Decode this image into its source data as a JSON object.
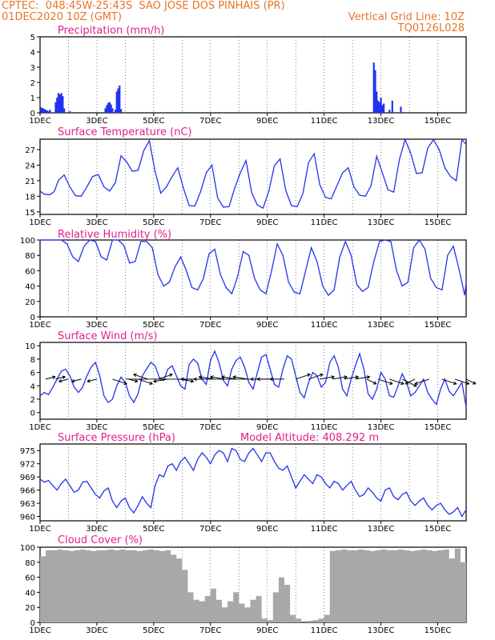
{
  "header": {
    "line1": "CPTEC:  048:45W-25:43S  SAO JOSE DOS PINHAIS (PR)",
    "line2_left": "01DEC2020 10Z (GMT)",
    "line2_right": "Vertical Grid Line: 10Z",
    "line3_right": "TQ0126L028",
    "color": "#e8742a"
  },
  "colors": {
    "title": "#e0208c",
    "series": "#2233ee",
    "cloud": "#a8a8a8",
    "frame": "#000000"
  },
  "x_tick_labels": [
    "1DEC",
    "3DEC",
    "5DEC",
    "7DEC",
    "9DEC",
    "11DEC",
    "13DEC",
    "15DEC"
  ],
  "x_range_days": [
    1,
    16
  ],
  "panels": [
    {
      "id": "precip",
      "title": "Precipitation (mm/h)",
      "ylim": [
        0,
        5
      ],
      "yticks": [
        0,
        1,
        2,
        3,
        4,
        5
      ]
    },
    {
      "id": "temp",
      "title": "Surface Temperature (nC)",
      "ylim": [
        14.5,
        29
      ],
      "yticks": [
        15,
        18,
        21,
        24,
        27
      ]
    },
    {
      "id": "rh",
      "title": "Relative Humidity (%)",
      "ylim": [
        0,
        100
      ],
      "yticks": [
        0,
        20,
        40,
        60,
        80,
        100
      ]
    },
    {
      "id": "wind",
      "title": "Surface Wind (m/s)",
      "ylim": [
        -1,
        10.5
      ],
      "yticks": [
        0,
        2,
        4,
        6,
        8,
        10
      ]
    },
    {
      "id": "pres",
      "title": "Surface Pressure (hPa)",
      "extra_label": "Model Altitude: 408.292 m",
      "ylim": [
        959,
        976.5
      ],
      "yticks": [
        960,
        963,
        966,
        969,
        972,
        975
      ]
    },
    {
      "id": "cloud",
      "title": "Cloud Cover (%)",
      "ylim": [
        0,
        100
      ],
      "yticks": [
        0,
        20,
        40,
        60,
        80,
        100
      ]
    }
  ],
  "chart_data": [
    {
      "type": "bar",
      "title": "Precipitation (mm/h)",
      "ylim": [
        0,
        5
      ],
      "x": [
        1.05,
        1.1,
        1.15,
        1.2,
        1.25,
        1.3,
        1.35,
        1.55,
        1.6,
        1.65,
        1.7,
        1.75,
        1.8,
        1.85,
        2.05,
        3.3,
        3.35,
        3.4,
        3.45,
        3.5,
        3.55,
        3.65,
        3.7,
        3.75,
        3.8,
        3.85,
        6.2,
        7.3,
        8.6,
        9.3,
        10.5,
        12.75,
        12.8,
        12.85,
        12.9,
        12.95,
        13.0,
        13.05,
        13.1,
        13.3,
        13.4,
        13.7
      ],
      "values": [
        0.35,
        0.3,
        0.25,
        0.2,
        0.15,
        0.1,
        0.2,
        0.7,
        1.0,
        1.3,
        1.2,
        1.3,
        1.1,
        0.3,
        0.1,
        0.3,
        0.5,
        0.65,
        0.7,
        0.55,
        0.3,
        0.2,
        1.4,
        1.6,
        1.8,
        0.25,
        0.05,
        0.05,
        0.05,
        0.05,
        0.05,
        3.3,
        2.8,
        1.4,
        0.8,
        0.7,
        1.0,
        0.5,
        0.6,
        0.2,
        0.8,
        0.4
      ]
    },
    {
      "type": "line",
      "title": "Surface Temperature (nC)",
      "ylim": [
        14.5,
        29
      ],
      "x": [
        1.0,
        1.15,
        1.35,
        1.5,
        1.65,
        1.85,
        2.05,
        2.25,
        2.45,
        2.65,
        2.85,
        3.05,
        3.25,
        3.45,
        3.65,
        3.85,
        4.05,
        4.25,
        4.45,
        4.65,
        4.85,
        5.05,
        5.25,
        5.45,
        5.65,
        5.85,
        6.05,
        6.25,
        6.45,
        6.65,
        6.85,
        7.05,
        7.25,
        7.45,
        7.65,
        7.85,
        8.05,
        8.25,
        8.45,
        8.65,
        8.85,
        9.05,
        9.25,
        9.45,
        9.65,
        9.85,
        10.05,
        10.25,
        10.45,
        10.65,
        10.85,
        11.05,
        11.25,
        11.45,
        11.65,
        11.85,
        12.05,
        12.25,
        12.45,
        12.65,
        12.85,
        13.05,
        13.25,
        13.45,
        13.65,
        13.85,
        14.05,
        14.25,
        14.45,
        14.65,
        14.85,
        15.05,
        15.25,
        15.45,
        15.65,
        15.85,
        16.0
      ],
      "values": [
        19,
        18.4,
        18.3,
        18.9,
        21.1,
        22.1,
        19.8,
        18.1,
        18.0,
        19.8,
        21.8,
        22.2,
        19.8,
        19.0,
        20.6,
        25.8,
        24.6,
        22.8,
        23.0,
        26.8,
        28.7,
        22.8,
        18.6,
        19.8,
        21.8,
        23.5,
        19.5,
        16.2,
        16.1,
        18.9,
        22.5,
        24.0,
        17.7,
        15.9,
        16.0,
        19.5,
        22.5,
        24.9,
        18.7,
        16.3,
        15.7,
        18.9,
        23.9,
        25.2,
        19.1,
        16.2,
        16.0,
        18.5,
        24.5,
        26.2,
        20.2,
        17.8,
        17.5,
        20.0,
        22.5,
        23.5,
        19.8,
        18.2,
        18.0,
        20.0,
        25.7,
        22.5,
        19.2,
        18.8,
        25.1,
        28.9,
        26.3,
        22.4,
        22.5,
        27.3,
        28.9,
        27.0,
        23.5,
        21.8,
        21.0,
        28.9,
        28.0
      ]
    },
    {
      "type": "line",
      "title": "Relative Humidity (%)",
      "ylim": [
        0,
        100
      ],
      "x": [
        1.0,
        1.2,
        1.4,
        1.55,
        1.75,
        1.95,
        2.15,
        2.35,
        2.55,
        2.75,
        2.95,
        3.15,
        3.35,
        3.55,
        3.75,
        3.95,
        4.15,
        4.35,
        4.55,
        4.75,
        4.95,
        5.15,
        5.35,
        5.55,
        5.75,
        5.95,
        6.15,
        6.35,
        6.55,
        6.75,
        6.95,
        7.15,
        7.35,
        7.55,
        7.75,
        7.95,
        8.15,
        8.35,
        8.55,
        8.75,
        8.95,
        9.15,
        9.35,
        9.55,
        9.75,
        9.95,
        10.15,
        10.35,
        10.55,
        10.75,
        10.95,
        11.15,
        11.35,
        11.55,
        11.75,
        11.95,
        12.15,
        12.35,
        12.55,
        12.75,
        12.95,
        13.15,
        13.35,
        13.55,
        13.75,
        13.95,
        14.15,
        14.35,
        14.55,
        14.75,
        14.95,
        15.15,
        15.35,
        15.55,
        15.75,
        15.95,
        16.0
      ],
      "values": [
        100,
        100,
        100,
        100,
        100,
        95,
        78,
        72,
        92,
        100,
        98,
        78,
        74,
        100,
        100,
        93,
        70,
        72,
        98,
        98,
        90,
        55,
        40,
        45,
        65,
        78,
        60,
        38,
        35,
        50,
        82,
        88,
        55,
        38,
        30,
        52,
        85,
        80,
        50,
        35,
        30,
        60,
        95,
        80,
        45,
        32,
        30,
        60,
        90,
        72,
        40,
        28,
        35,
        78,
        98,
        80,
        42,
        33,
        38,
        72,
        98,
        100,
        98,
        60,
        40,
        45,
        90,
        100,
        88,
        50,
        38,
        35,
        80,
        92,
        62,
        28,
        45
      ]
    },
    {
      "type": "line",
      "title": "Surface Wind (m/s)",
      "ylim": [
        -1,
        10.5
      ],
      "x": [
        1.0,
        1.15,
        1.3,
        1.45,
        1.6,
        1.75,
        1.9,
        2.05,
        2.2,
        2.35,
        2.5,
        2.65,
        2.8,
        2.95,
        3.1,
        3.25,
        3.4,
        3.55,
        3.7,
        3.85,
        4.0,
        4.15,
        4.3,
        4.45,
        4.6,
        4.75,
        4.9,
        5.05,
        5.2,
        5.35,
        5.5,
        5.65,
        5.8,
        5.95,
        6.1,
        6.25,
        6.4,
        6.55,
        6.7,
        6.85,
        7.0,
        7.15,
        7.3,
        7.45,
        7.6,
        7.75,
        7.9,
        8.05,
        8.2,
        8.35,
        8.5,
        8.65,
        8.8,
        8.95,
        9.1,
        9.25,
        9.4,
        9.55,
        9.7,
        9.85,
        10.0,
        10.15,
        10.3,
        10.45,
        10.6,
        10.75,
        10.9,
        11.05,
        11.2,
        11.35,
        11.5,
        11.65,
        11.8,
        11.95,
        12.1,
        12.25,
        12.4,
        12.55,
        12.7,
        12.85,
        13.0,
        13.15,
        13.3,
        13.45,
        13.6,
        13.75,
        13.9,
        14.05,
        14.2,
        14.35,
        14.5,
        14.65,
        14.8,
        14.95,
        15.1,
        15.25,
        15.4,
        15.55,
        15.7,
        15.85,
        16.0
      ],
      "values": [
        2.5,
        3.0,
        2.7,
        3.8,
        5.0,
        6.2,
        6.5,
        5.5,
        3.8,
        3.0,
        3.8,
        5.5,
        6.8,
        7.5,
        5.5,
        2.5,
        1.5,
        2.0,
        4.0,
        5.3,
        4.5,
        2.5,
        1.5,
        2.8,
        5.5,
        6.5,
        7.5,
        7.0,
        5.2,
        4.8,
        6.5,
        7.0,
        5.5,
        4.0,
        3.5,
        7.2,
        8.0,
        7.4,
        5.0,
        4.2,
        7.8,
        9.2,
        7.5,
        4.8,
        4.0,
        6.5,
        7.8,
        8.3,
        6.8,
        4.5,
        3.5,
        6.0,
        8.3,
        8.7,
        6.5,
        4.2,
        3.8,
        6.5,
        8.5,
        8.0,
        5.5,
        3.0,
        2.2,
        4.5,
        6.0,
        5.5,
        3.8,
        4.5,
        7.5,
        8.5,
        6.8,
        3.5,
        2.5,
        5.0,
        7.0,
        8.8,
        6.5,
        2.8,
        2.0,
        3.5,
        6.0,
        5.0,
        2.5,
        2.3,
        4.0,
        5.8,
        4.5,
        2.5,
        3.0,
        4.0,
        5.0,
        3.0,
        2.0,
        1.2,
        3.5,
        5.0,
        3.2,
        2.5,
        3.5,
        4.5,
        0.8
      ]
    },
    {
      "type": "line",
      "title": "Surface Pressure (hPa)",
      "ylim": [
        959,
        976.5
      ],
      "x": [
        1.0,
        1.15,
        1.3,
        1.45,
        1.6,
        1.75,
        1.9,
        2.05,
        2.2,
        2.35,
        2.5,
        2.65,
        2.8,
        2.95,
        3.1,
        3.25,
        3.4,
        3.55,
        3.7,
        3.85,
        4.0,
        4.15,
        4.3,
        4.45,
        4.6,
        4.75,
        4.9,
        5.05,
        5.2,
        5.35,
        5.5,
        5.65,
        5.8,
        5.95,
        6.1,
        6.25,
        6.4,
        6.55,
        6.7,
        6.85,
        7.0,
        7.15,
        7.3,
        7.45,
        7.6,
        7.75,
        7.9,
        8.05,
        8.2,
        8.35,
        8.5,
        8.65,
        8.8,
        8.95,
        9.1,
        9.25,
        9.4,
        9.55,
        9.7,
        9.85,
        10.0,
        10.15,
        10.3,
        10.45,
        10.6,
        10.75,
        10.9,
        11.05,
        11.2,
        11.35,
        11.5,
        11.65,
        11.8,
        11.95,
        12.1,
        12.25,
        12.4,
        12.55,
        12.7,
        12.85,
        13.0,
        13.15,
        13.3,
        13.45,
        13.6,
        13.75,
        13.9,
        14.05,
        14.2,
        14.35,
        14.5,
        14.65,
        14.8,
        14.95,
        15.1,
        15.25,
        15.4,
        15.55,
        15.7,
        15.85,
        16.0
      ],
      "values": [
        968.5,
        967.8,
        968.2,
        967.0,
        966.0,
        967.5,
        968.5,
        967.0,
        965.5,
        966.0,
        967.8,
        968.0,
        966.5,
        965.0,
        964.2,
        965.8,
        966.5,
        963.5,
        962.0,
        963.5,
        964.2,
        962.0,
        960.8,
        962.5,
        964.5,
        963.0,
        962.0,
        967.0,
        969.5,
        969.0,
        971.5,
        972.0,
        970.5,
        972.5,
        973.5,
        972.0,
        970.5,
        973.0,
        974.5,
        973.5,
        972.0,
        974.0,
        975.0,
        974.5,
        972.5,
        975.5,
        975.0,
        973.0,
        972.5,
        974.5,
        975.5,
        974.0,
        972.5,
        974.5,
        974.5,
        972.5,
        971.0,
        970.5,
        971.5,
        969.0,
        966.5,
        968.0,
        969.5,
        968.5,
        967.5,
        969.5,
        969.0,
        967.5,
        966.5,
        968.0,
        967.5,
        966.0,
        967.0,
        968.0,
        966.0,
        964.5,
        965.0,
        966.5,
        965.5,
        964.2,
        963.5,
        966.0,
        966.5,
        964.5,
        963.8,
        965.0,
        965.5,
        963.5,
        962.5,
        963.5,
        964.2,
        962.5,
        961.5,
        962.5,
        963.0,
        961.5,
        960.5,
        961.0,
        962.0,
        960.0,
        961.5
      ]
    },
    {
      "type": "area",
      "title": "Cloud Cover (%)",
      "ylim": [
        0,
        100
      ],
      "x": [
        1.0,
        1.2,
        1.4,
        1.6,
        1.8,
        2.0,
        2.2,
        2.4,
        2.6,
        2.8,
        3.0,
        3.2,
        3.4,
        3.6,
        3.8,
        4.0,
        4.2,
        4.4,
        4.6,
        4.8,
        5.0,
        5.2,
        5.4,
        5.6,
        5.8,
        6.0,
        6.2,
        6.4,
        6.6,
        6.8,
        7.0,
        7.2,
        7.4,
        7.6,
        7.8,
        8.0,
        8.2,
        8.4,
        8.6,
        8.8,
        9.0,
        9.2,
        9.4,
        9.6,
        9.8,
        10.0,
        10.2,
        10.4,
        10.6,
        10.8,
        11.0,
        11.2,
        11.4,
        11.6,
        11.8,
        12.0,
        12.2,
        12.4,
        12.6,
        12.8,
        13.0,
        13.2,
        13.4,
        13.6,
        13.8,
        14.0,
        14.2,
        14.4,
        14.6,
        14.8,
        15.0,
        15.2,
        15.4,
        15.6,
        15.8,
        16.0
      ],
      "values": [
        88,
        96,
        96,
        97,
        96,
        95,
        96,
        97,
        96,
        95,
        96,
        96,
        97,
        96,
        97,
        96,
        96,
        95,
        96,
        97,
        96,
        95,
        96,
        90,
        85,
        70,
        40,
        30,
        28,
        35,
        45,
        30,
        20,
        28,
        40,
        25,
        20,
        30,
        35,
        5,
        3,
        40,
        60,
        50,
        10,
        5,
        0,
        2,
        3,
        5,
        10,
        95,
        96,
        97,
        96,
        96,
        97,
        96,
        95,
        96,
        97,
        96,
        96,
        97,
        96,
        95,
        96,
        97,
        96,
        95,
        96,
        97,
        85,
        98,
        80,
        99
      ]
    }
  ],
  "wind_vectors": {
    "x": [
      1.2,
      1.55,
      2.0,
      2.45,
      3.0,
      3.55,
      4.1,
      4.45,
      4.8,
      5.15,
      5.5,
      5.9,
      6.3,
      6.75,
      7.1,
      7.5,
      7.9,
      8.3,
      8.75,
      9.15,
      9.6,
      10.0,
      10.45,
      10.85,
      11.3,
      11.7,
      12.1,
      12.5,
      12.9,
      13.3,
      13.75,
      14.2,
      14.7,
      15.15,
      15.6,
      16.0
    ],
    "u": [
      2,
      2,
      -2,
      -2,
      -2,
      3,
      2,
      3,
      -3,
      3,
      -3,
      3,
      -2,
      -2,
      -3,
      -3,
      -3,
      -3,
      -2,
      -3,
      -3,
      3,
      3,
      3,
      3,
      3,
      3,
      2,
      3,
      3,
      3,
      -2,
      -3,
      3,
      3,
      2
    ],
    "v": [
      1,
      1,
      -1,
      -1,
      -1,
      -2,
      -1,
      -2,
      2,
      2,
      -1,
      -1,
      0,
      0,
      1,
      1,
      1,
      1,
      0,
      0,
      0,
      2,
      2,
      1,
      1,
      1,
      1,
      -2,
      -2,
      -2,
      -3,
      -2,
      -2,
      -2,
      -2,
      -2
    ]
  }
}
